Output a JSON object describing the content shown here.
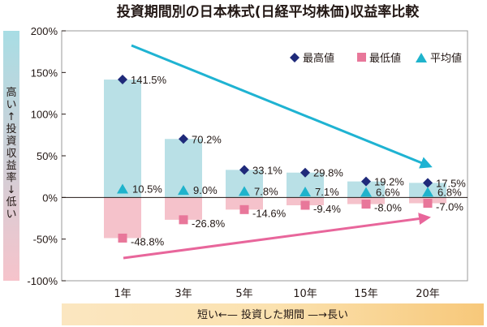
{
  "chart_data": {
    "type": "bar",
    "title": "投資期間別の日本株式(日経平均株価)収益率比較",
    "categories": [
      "1年",
      "3年",
      "5年",
      "10年",
      "15年",
      "20年"
    ],
    "series": [
      {
        "name": "最高値",
        "values": [
          141.5,
          70.2,
          33.1,
          29.8,
          19.2,
          17.5
        ],
        "labels": [
          "141.5%",
          "70.2%",
          "33.1%",
          "29.8%",
          "19.2%",
          "17.5%"
        ]
      },
      {
        "name": "最低値",
        "values": [
          -48.8,
          -26.8,
          -14.6,
          -9.4,
          -8.0,
          -7.0
        ],
        "labels": [
          "-48.8%",
          "-26.8%",
          "-14.6%",
          "-9.4%",
          "-8.0%",
          "-7.0%"
        ]
      },
      {
        "name": "平均値",
        "values": [
          10.5,
          9.0,
          7.8,
          7.1,
          6.6,
          6.8
        ],
        "labels": [
          "10.5%",
          "9.0%",
          "7.8%",
          "7.1%",
          "6.6%",
          "6.8%"
        ]
      }
    ],
    "ylim": [
      -100,
      200
    ],
    "yticks": [
      200,
      150,
      100,
      50,
      0,
      -50,
      -100
    ],
    "ytick_labels": [
      "200%",
      "150%",
      "100%",
      "50%",
      "0%",
      "-50%",
      "-100%"
    ],
    "legend_position": "top-right",
    "grid": false,
    "y_axis_note": [
      "高い",
      "↑",
      "投資収益率",
      "↓",
      "低い"
    ],
    "x_axis_note": "短い←— 投資した期間 —→長い"
  },
  "colors": {
    "positive_band": "#b9e0e6",
    "negative_band": "#f5c2cb",
    "max_marker": "#1f2a7a",
    "min_marker": "#e8779a",
    "avg_marker": "#1fb3cc",
    "down_arrow": "#1fb3d2",
    "up_arrow": "#e8669b",
    "x_note_band": "#f9d9a0",
    "y_note_band_top": "#a8dde4",
    "y_note_band_bottom": "#f6c3cb"
  }
}
